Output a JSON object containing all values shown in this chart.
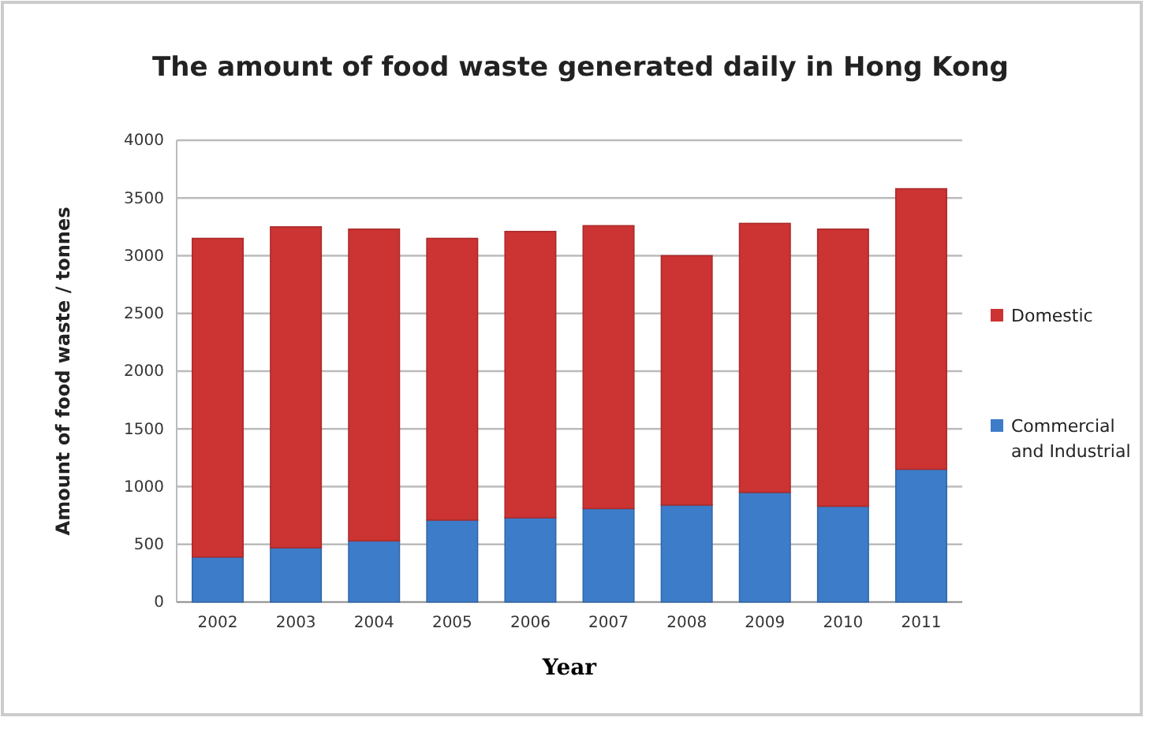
{
  "chart_data": {
    "type": "bar",
    "title": "The amount of food waste generated daily in Hong Kong",
    "xlabel": "Year",
    "ylabel": "Amount of food waste / tonnes",
    "categories": [
      "2002",
      "2003",
      "2004",
      "2005",
      "2006",
      "2007",
      "2008",
      "2009",
      "2010",
      "2011"
    ],
    "series": [
      {
        "name": "Commercial and Industrial",
        "color": "#3d7cc9",
        "values": [
          390,
          470,
          530,
          710,
          730,
          810,
          840,
          950,
          830,
          1150
        ]
      },
      {
        "name": "Domestic",
        "color": "#cc3333",
        "values": [
          2760,
          2780,
          2700,
          2440,
          2480,
          2450,
          2160,
          2330,
          2400,
          2430
        ]
      }
    ],
    "stacked": true,
    "ylim": [
      0,
      4000
    ],
    "yticks": [
      0,
      500,
      1000,
      1500,
      2000,
      2500,
      3000,
      3500,
      4000
    ],
    "grid": "y",
    "legend": "right"
  }
}
